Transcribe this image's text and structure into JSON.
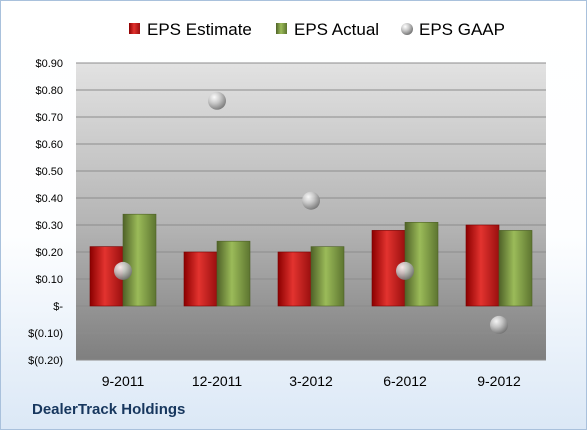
{
  "company": "DealerTrack Holdings",
  "chart_data": {
    "type": "bar",
    "title": "",
    "xlabel": "",
    "ylabel": "",
    "categories": [
      "9-2011",
      "12-2011",
      "3-2012",
      "6-2012",
      "9-2012"
    ],
    "ylim": [
      -0.2,
      0.9
    ],
    "yticks": [
      -0.2,
      -0.1,
      0,
      0.1,
      0.2,
      0.3,
      0.4,
      0.5,
      0.6,
      0.7,
      0.8,
      0.9
    ],
    "ytick_labels": [
      "$(0.20)",
      "$(0.10)",
      "$-",
      "$0.10",
      "$0.20",
      "$0.30",
      "$0.40",
      "$0.50",
      "$0.60",
      "$0.70",
      "$0.80",
      "$0.90"
    ],
    "grid": true,
    "legend_position": "top",
    "series": [
      {
        "name": "EPS Estimate",
        "kind": "bar",
        "color": "#c00000",
        "values": [
          0.22,
          0.2,
          0.2,
          0.28,
          0.3
        ]
      },
      {
        "name": "EPS Actual",
        "kind": "bar",
        "color": "#77933c",
        "values": [
          0.34,
          0.24,
          0.22,
          0.31,
          0.28
        ]
      },
      {
        "name": "EPS GAAP",
        "kind": "marker",
        "color": "#a6a6a6",
        "values": [
          0.13,
          0.76,
          0.39,
          0.13,
          -0.07
        ]
      }
    ]
  }
}
